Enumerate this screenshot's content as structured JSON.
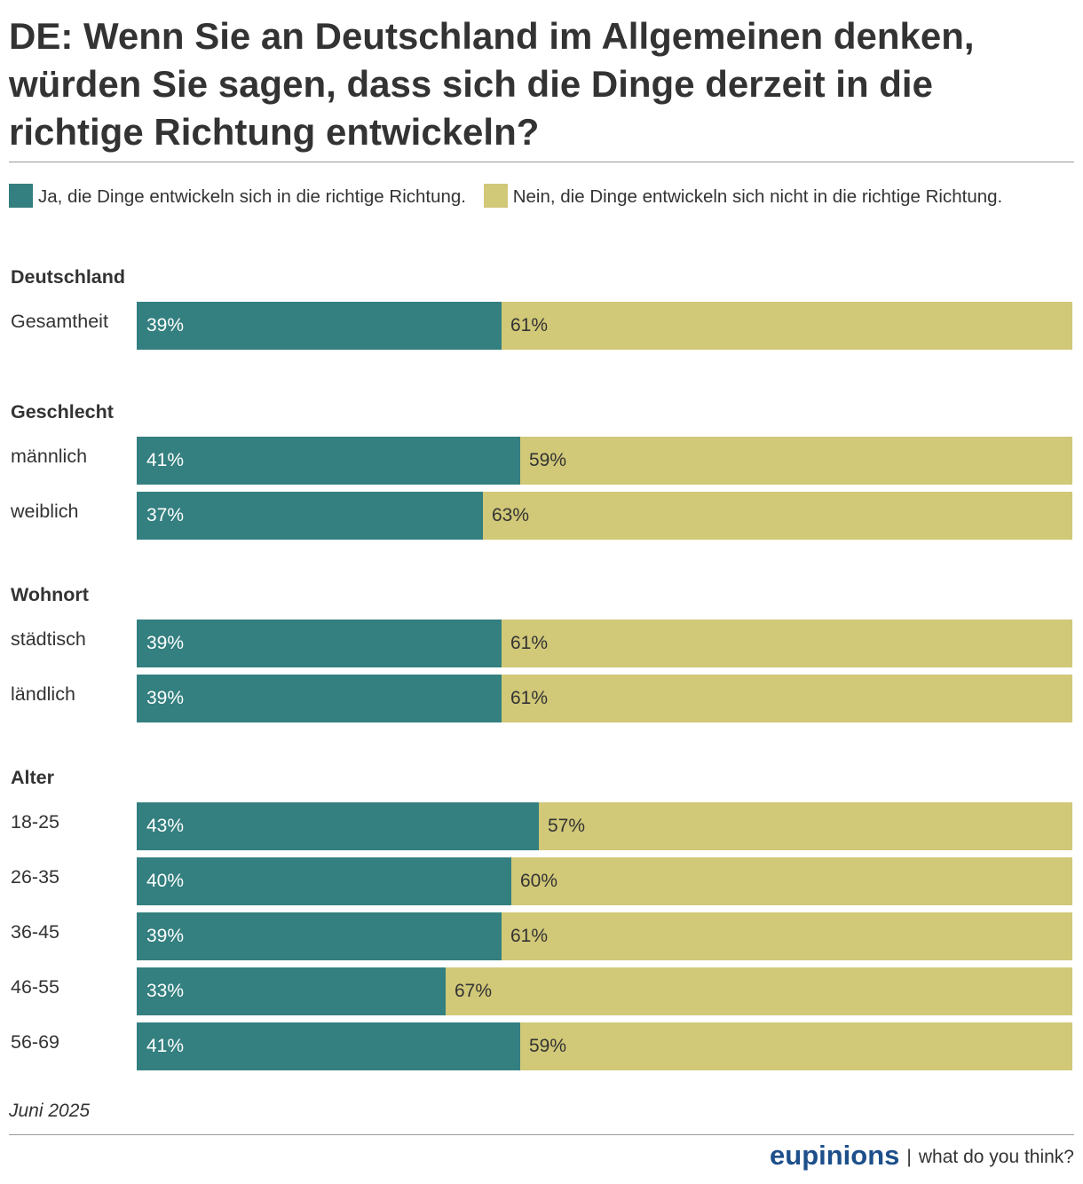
{
  "title": "DE: Wenn Sie an Deutschland im Allgemeinen denken, würden Sie sagen, dass sich die Dinge derzeit in die richtige Richtung entwickeln?",
  "colors": {
    "ja": "#347f7f",
    "nein": "#d1c878",
    "ja_text": "#ffffff",
    "nein_text": "#333333"
  },
  "chart_data": {
    "type": "bar",
    "orientation": "horizontal",
    "stacked": true,
    "percent_stacked": true,
    "xlim": [
      0,
      100
    ],
    "series": [
      {
        "name": "Ja, die Dinge entwickeln sich in die richtige Richtung."
      },
      {
        "name": "Nein, die Dinge entwickeln sich nicht in die richtige Richtung."
      }
    ],
    "groups": [
      {
        "title": "Deutschland",
        "rows": [
          {
            "label": "Gesamtheit",
            "ja": 39,
            "nein": 61
          }
        ]
      },
      {
        "title": "Geschlecht",
        "rows": [
          {
            "label": "männlich",
            "ja": 41,
            "nein": 59
          },
          {
            "label": "weiblich",
            "ja": 37,
            "nein": 63
          }
        ]
      },
      {
        "title": "Wohnort",
        "rows": [
          {
            "label": "städtisch",
            "ja": 39,
            "nein": 61
          },
          {
            "label": "ländlich",
            "ja": 39,
            "nein": 61
          }
        ]
      },
      {
        "title": "Alter",
        "rows": [
          {
            "label": "18-25",
            "ja": 43,
            "nein": 57
          },
          {
            "label": "26-35",
            "ja": 40,
            "nein": 60
          },
          {
            "label": "36-45",
            "ja": 39,
            "nein": 61
          },
          {
            "label": "46-55",
            "ja": 33,
            "nein": 67
          },
          {
            "label": "56-69",
            "ja": 41,
            "nein": 59
          }
        ]
      }
    ]
  },
  "footer": {
    "date": "Juni 2025",
    "brand": "eupinions",
    "separator": "|",
    "tagline": "what do you think?"
  }
}
